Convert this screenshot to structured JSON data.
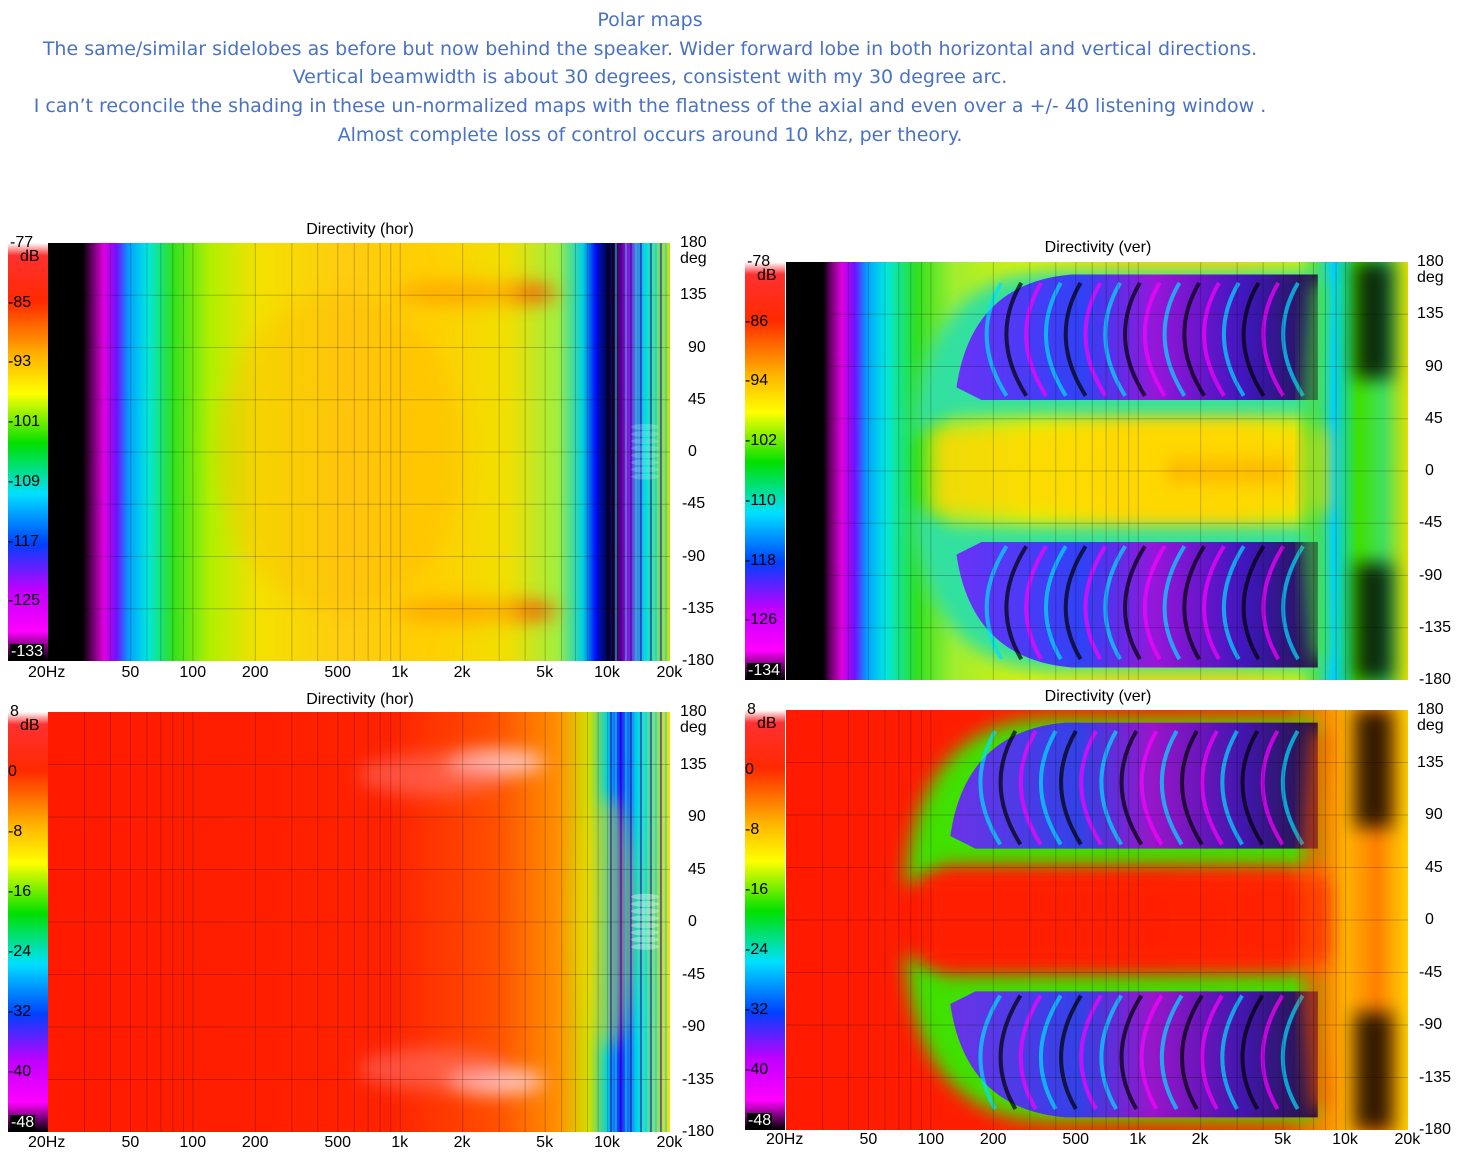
{
  "slide": {
    "lines": [
      "Polar maps",
      "The same/similar sidelobes as before but now behind the speaker.  Wider forward lobe in both horizontal and vertical directions.",
      "Vertical beamwidth is about 30 degrees, consistent with my 30 degree arc.",
      "I can’t reconcile the shading in these un-normalized maps with the flatness of the axial and even over a +/- 40 listening window .",
      "Almost complete loss of control occurs around 10 khz, per theory."
    ]
  },
  "chart_data": [
    {
      "type": "heatmap",
      "title": "Directivity (hor)",
      "xlabel": "",
      "ylabel": "",
      "x_scale": "log",
      "xlim": [
        20,
        20000
      ],
      "x_ticks": [
        "20Hz",
        "50",
        "100",
        "200",
        "500",
        "1k",
        "2k",
        "5k",
        "10k",
        "20k"
      ],
      "x_tick_values": [
        20,
        50,
        100,
        200,
        500,
        1000,
        2000,
        5000,
        10000,
        20000
      ],
      "ylim": [
        -180,
        180
      ],
      "y_unit": "deg",
      "y_ticks": [
        "180",
        "135",
        "90",
        "45",
        "0",
        "-45",
        "-90",
        "-135",
        "-180"
      ],
      "color_unit": "dB",
      "color_range": [
        -133,
        -77
      ],
      "colorbar_ticks": [
        "-77",
        "-85",
        "-93",
        "-101",
        "-109",
        "-117",
        "-125",
        "-133"
      ],
      "normalized": false,
      "plane": "horizontal"
    },
    {
      "type": "heatmap",
      "title": "Directivity (ver)",
      "xlabel": "",
      "ylabel": "",
      "x_scale": "log",
      "xlim": [
        20,
        20000
      ],
      "x_ticks": [],
      "ylim": [
        -180,
        180
      ],
      "y_unit": "deg",
      "y_ticks": [
        "180",
        "135",
        "90",
        "45",
        "0",
        "-45",
        "-90",
        "-135",
        "-180"
      ],
      "color_unit": "dB",
      "color_range": [
        -134,
        -78
      ],
      "colorbar_ticks": [
        "-78",
        "-86",
        "-94",
        "-102",
        "-110",
        "-118",
        "-126",
        "-134"
      ],
      "normalized": false,
      "plane": "vertical"
    },
    {
      "type": "heatmap",
      "title": "Directivity (hor)",
      "xlabel": "",
      "ylabel": "",
      "x_scale": "log",
      "xlim": [
        20,
        20000
      ],
      "x_ticks": [
        "20Hz",
        "50",
        "100",
        "200",
        "500",
        "1k",
        "2k",
        "5k",
        "10k",
        "20k"
      ],
      "x_tick_values": [
        20,
        50,
        100,
        200,
        500,
        1000,
        2000,
        5000,
        10000,
        20000
      ],
      "ylim": [
        -180,
        180
      ],
      "y_unit": "deg",
      "y_ticks": [
        "180",
        "135",
        "90",
        "45",
        "0",
        "-45",
        "-90",
        "-135",
        "-180"
      ],
      "color_unit": "dB",
      "color_range": [
        -48,
        8
      ],
      "colorbar_ticks": [
        "8",
        "0",
        "-8",
        "-16",
        "-24",
        "-32",
        "-40",
        "-48"
      ],
      "normalized": true,
      "plane": "horizontal"
    },
    {
      "type": "heatmap",
      "title": "Directivity (ver)",
      "xlabel": "",
      "ylabel": "",
      "x_scale": "log",
      "xlim": [
        20,
        20000
      ],
      "x_ticks": [
        "20Hz",
        "50",
        "100",
        "200",
        "500",
        "1k",
        "2k",
        "5k",
        "10k",
        "20k"
      ],
      "x_tick_values": [
        20,
        50,
        100,
        200,
        500,
        1000,
        2000,
        5000,
        10000,
        20000
      ],
      "ylim": [
        -180,
        180
      ],
      "y_unit": "deg",
      "y_ticks": [
        "180",
        "135",
        "90",
        "45",
        "0",
        "-45",
        "-90",
        "-135",
        "-180"
      ],
      "color_unit": "dB",
      "color_range": [
        -48,
        8
      ],
      "colorbar_ticks": [
        "8",
        "0",
        "-8",
        "-16",
        "-24",
        "-32",
        "-40",
        "-48"
      ],
      "normalized": true,
      "plane": "vertical"
    }
  ]
}
